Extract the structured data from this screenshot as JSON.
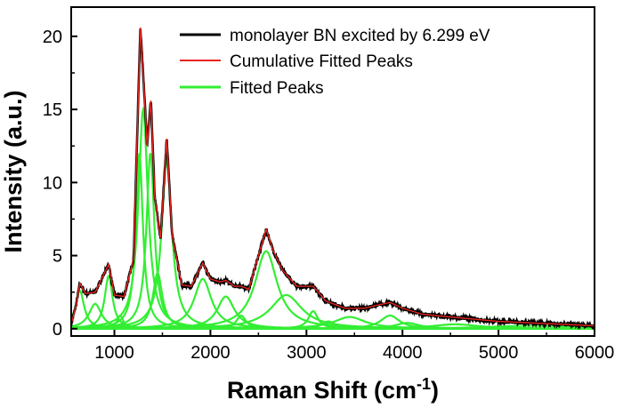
{
  "chart_data": {
    "type": "line",
    "title": "",
    "xlabel": "Raman Shift (cm",
    "xlabel_sup": "-1",
    "xlabel_close": ")",
    "ylabel": "Intensity (a.u.)",
    "xlim": [
      550,
      6000
    ],
    "ylim": [
      -0.5,
      22
    ],
    "xticks": [
      1000,
      2000,
      3000,
      4000,
      5000,
      6000
    ],
    "xtick_labels": [
      "1000",
      "2000",
      "3000",
      "4000",
      "5000",
      "6000"
    ],
    "yticks": [
      0,
      5,
      10,
      15,
      20
    ],
    "ytick_labels": [
      "0",
      "5",
      "10",
      "15",
      "20"
    ],
    "legend": [
      {
        "label": "monolayer BN excited by 6.299 eV",
        "color": "#000000"
      },
      {
        "label": "Cumulative Fitted Peaks",
        "color": "#e8251f"
      },
      {
        "label": "Fitted Peaks",
        "color": "#33ee33"
      }
    ],
    "fitted_peaks": [
      {
        "center": 640,
        "height": 2.6,
        "width": 55
      },
      {
        "center": 800,
        "height": 1.7,
        "width": 80
      },
      {
        "center": 940,
        "height": 3.6,
        "width": 50
      },
      {
        "center": 1060,
        "height": 0.9,
        "width": 40
      },
      {
        "center": 1260,
        "height": 12.0,
        "width": 45
      },
      {
        "center": 1300,
        "height": 15.0,
        "width": 60
      },
      {
        "center": 1375,
        "height": 12.0,
        "width": 50
      },
      {
        "center": 1450,
        "height": 3.8,
        "width": 60
      },
      {
        "center": 1545,
        "height": 11.5,
        "width": 65
      },
      {
        "center": 1920,
        "height": 3.4,
        "width": 110
      },
      {
        "center": 2160,
        "height": 2.2,
        "width": 110
      },
      {
        "center": 2320,
        "height": 0.9,
        "width": 60
      },
      {
        "center": 2580,
        "height": 5.3,
        "width": 140
      },
      {
        "center": 2790,
        "height": 2.3,
        "width": 200
      },
      {
        "center": 3070,
        "height": 1.2,
        "width": 60
      },
      {
        "center": 3230,
        "height": 0.5,
        "width": 80
      },
      {
        "center": 3450,
        "height": 0.8,
        "width": 200
      },
      {
        "center": 3870,
        "height": 0.9,
        "width": 120
      },
      {
        "center": 4050,
        "height": 0.4,
        "width": 150
      },
      {
        "center": 4550,
        "height": 0.3,
        "width": 300
      },
      {
        "center": 5300,
        "height": 0.2,
        "width": 500
      }
    ],
    "baseline": 0.05,
    "series": [
      {
        "name": "monolayer BN excited by 6.299 eV",
        "color": "#000000",
        "x": [
          550,
          600,
          640,
          700,
          800,
          940,
          1000,
          1100,
          1200,
          1270,
          1300,
          1340,
          1380,
          1420,
          1480,
          1545,
          1600,
          1700,
          1800,
          1920,
          2000,
          2100,
          2160,
          2250,
          2320,
          2400,
          2500,
          2580,
          2650,
          2750,
          2900,
          3070,
          3200,
          3400,
          3600,
          3870,
          4000,
          4200,
          4500,
          5000,
          5500,
          6000
        ],
        "y": [
          0.3,
          1.6,
          3.1,
          2.4,
          2.5,
          4.4,
          2.3,
          2.2,
          4.8,
          20.6,
          17.5,
          12.5,
          15.6,
          9.0,
          6.2,
          13.0,
          6.5,
          3.0,
          2.9,
          4.5,
          3.4,
          3.2,
          3.3,
          2.9,
          2.9,
          2.7,
          5.0,
          6.8,
          5.4,
          4.0,
          2.9,
          2.9,
          1.9,
          1.4,
          1.4,
          1.8,
          1.4,
          1.0,
          0.8,
          0.5,
          0.35,
          0.2
        ]
      },
      {
        "name": "Cumulative Fitted Peaks",
        "color": "#e8251f"
      },
      {
        "name": "Fitted Peaks",
        "color": "#33ee33"
      }
    ]
  }
}
